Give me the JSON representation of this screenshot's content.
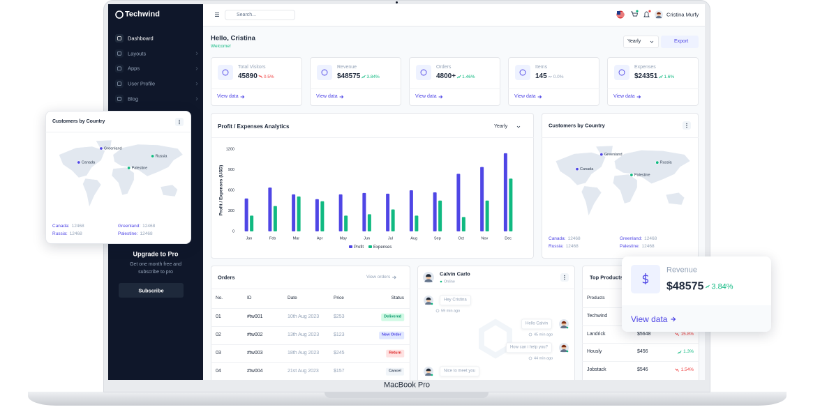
{
  "device": "MacBook Pro",
  "topbar": {
    "brand": "Techwind",
    "search": "Search...",
    "user": "Cristina Murfy"
  },
  "sidebar": {
    "menu": [
      "Dashboard",
      "Layouts",
      "Apps",
      "User Profile",
      "Blog"
    ],
    "upgrade_title": "Upgrade to Pro",
    "upgrade_text": "Get one month free and subscribe to pro",
    "upgrade_button": "Subscribe"
  },
  "header": {
    "greeting": "Hello, Cristina",
    "welcome": "Welcome!",
    "period": "Yearly",
    "export": "Export"
  },
  "stats": [
    {
      "label": "Total Visitors",
      "value": "45890",
      "change": "0.5%",
      "trend": "down",
      "link": "View data"
    },
    {
      "label": "Revenue",
      "value": "$48575",
      "change": "3.84%",
      "trend": "up",
      "link": "View data"
    },
    {
      "label": "Orders",
      "value": "4800+",
      "change": "1.46%",
      "trend": "up",
      "link": "View data"
    },
    {
      "label": "Items",
      "value": "145",
      "change": "0.0%",
      "trend": "flat",
      "link": "View data"
    },
    {
      "label": "Expenses",
      "value": "$24351",
      "change": "1.6%",
      "trend": "up",
      "link": "View data"
    }
  ],
  "chart_data": {
    "type": "bar",
    "title": "Profit / Expenses Analytics",
    "period": "Yearly",
    "y_label": "Profit / Expenses (USD)",
    "categories": [
      "Jan",
      "Feb",
      "Mar",
      "Apr",
      "May",
      "Jun",
      "Jul",
      "Aug",
      "Sep",
      "Oct",
      "Nov",
      "Dec"
    ],
    "series": [
      {
        "name": "Profit",
        "color": "#4f46e5",
        "values": [
          480,
          640,
          540,
          470,
          540,
          560,
          550,
          600,
          570,
          840,
          940,
          1140
        ]
      },
      {
        "name": "Expenses",
        "color": "#10b981",
        "values": [
          230,
          370,
          510,
          440,
          230,
          250,
          320,
          230,
          450,
          210,
          450,
          770
        ]
      }
    ],
    "ylim": [
      0,
      1200
    ],
    "yticks": [
      0,
      300,
      600,
      900,
      1200
    ],
    "grid": false,
    "legend": "bottom"
  },
  "countries": {
    "title": "Customers by Country",
    "items": [
      {
        "name": "Canada",
        "key": "Canada:",
        "value": "12468",
        "color": "#4f46e5"
      },
      {
        "name": "Greenland",
        "key": "Greenland:",
        "value": "12468",
        "color": "#4f46e5"
      },
      {
        "name": "Russia",
        "key": "Russia:",
        "value": "12468",
        "color": "#10b981"
      },
      {
        "name": "Palestine",
        "key": "Palestine:",
        "value": "12468",
        "color": "#10b981"
      }
    ]
  },
  "orders": {
    "title": "Orders",
    "link": "View orders",
    "columns": [
      "No.",
      "ID",
      "Date",
      "Price",
      "Status"
    ],
    "rows": [
      {
        "no": "01",
        "id": "#tw001",
        "date": "10th Aug 2023",
        "price": "$253",
        "status": "Delivered",
        "status_color": "#059669",
        "status_bg": "#d1fae5"
      },
      {
        "no": "02",
        "id": "#tw002",
        "date": "13th Aug 2023",
        "price": "$123",
        "status": "New Order",
        "status_color": "#4f46e5",
        "status_bg": "#e0e7ff"
      },
      {
        "no": "03",
        "id": "#tw003",
        "date": "18th Aug 2023",
        "price": "$245",
        "status": "Return",
        "status_color": "#dc2626",
        "status_bg": "#fee2e2"
      },
      {
        "no": "04",
        "id": "#tw004",
        "date": "21st Aug 2023",
        "price": "$157",
        "status": "Cancel",
        "status_color": "#475569",
        "status_bg": "#f1f5f9"
      }
    ]
  },
  "chat": {
    "name": "Calvin Carlo",
    "status": "Online",
    "messages": [
      {
        "side": "left",
        "text": "Hey Cristina",
        "time": "59 min ago"
      },
      {
        "side": "right",
        "text": "Hello Calvin",
        "time": "45 min ago"
      },
      {
        "side": "right",
        "text": "How can i help you?",
        "time": "44 min ago"
      },
      {
        "side": "left",
        "text": "Nice to meet you"
      }
    ]
  },
  "top_products": {
    "title": "Top Products",
    "column": "Products",
    "rows": [
      {
        "name": "Techwind"
      },
      {
        "name": "Landrick",
        "price": "$5648",
        "change": "15.8%",
        "trend": "down"
      },
      {
        "name": "Hously",
        "price": "$456",
        "change": "1.3%",
        "trend": "up"
      },
      {
        "name": "Jobstack",
        "price": "$546",
        "change": "1.54%",
        "trend": "down"
      }
    ]
  },
  "revenue_popup": {
    "label": "Revenue",
    "value": "$48575",
    "change": "3.84%",
    "trend": "up",
    "link": "View data"
  }
}
